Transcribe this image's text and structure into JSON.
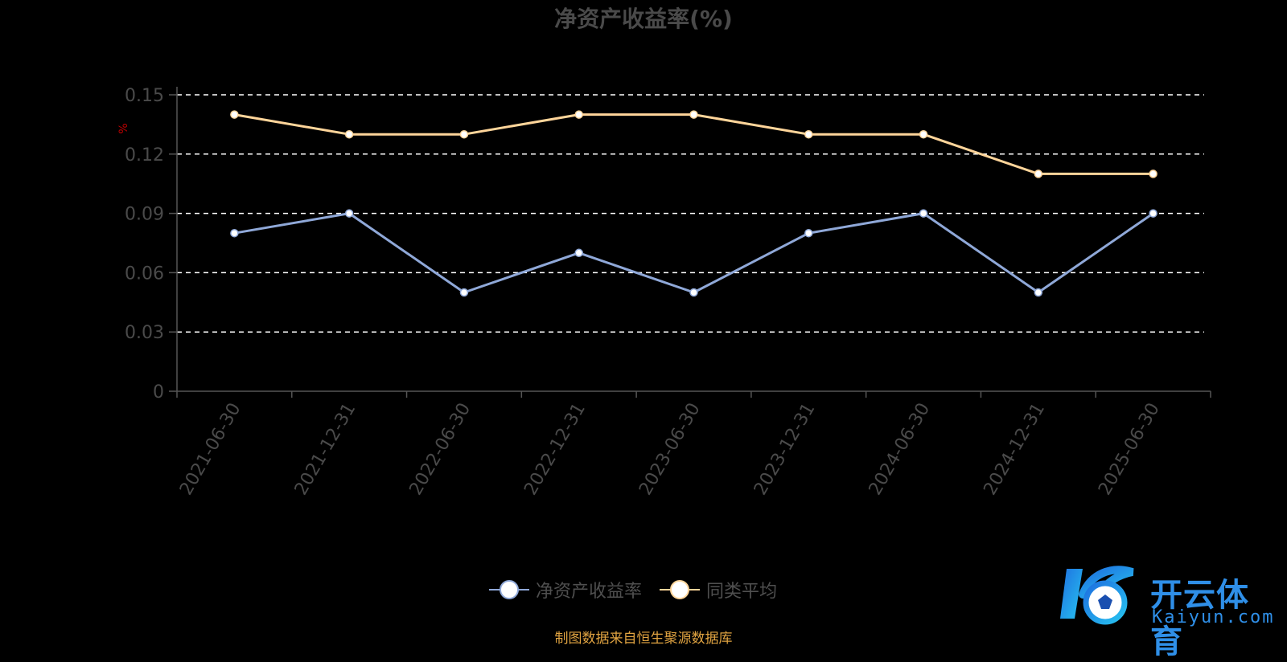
{
  "chart_data": {
    "type": "line",
    "title": "净资产收益率(%)",
    "ylabel": "%",
    "ylim": [
      0,
      0.15
    ],
    "yticks": [
      "0",
      "0.03",
      "0.06",
      "0.09",
      "0.12",
      "0.15"
    ],
    "categories": [
      "2021-06-30",
      "2021-12-31",
      "2022-06-30",
      "2022-12-31",
      "2023-06-30",
      "2023-12-31",
      "2024-06-30",
      "2024-12-31",
      "2025-06-30"
    ],
    "grid": true,
    "legend_position": "bottom",
    "series": [
      {
        "name": "净资产收益率",
        "color": "#8fa8d8",
        "values": [
          0.08,
          0.09,
          0.05,
          0.07,
          0.05,
          0.08,
          0.09,
          0.05,
          0.09
        ]
      },
      {
        "name": "同类平均",
        "color": "#ffd59a",
        "values": [
          0.14,
          0.13,
          0.13,
          0.14,
          0.14,
          0.13,
          0.13,
          0.11,
          0.11
        ]
      }
    ]
  },
  "footer": {
    "source": "制图数据来自恒生聚源数据库"
  },
  "logo": {
    "word": "开云体育",
    "url": "Kaiyun.com"
  },
  "colors": {
    "axis": "#555555",
    "grid": "#ffffff",
    "text": "#4a4a4a",
    "ylabel": "#c00000",
    "source": "#e0a341"
  }
}
